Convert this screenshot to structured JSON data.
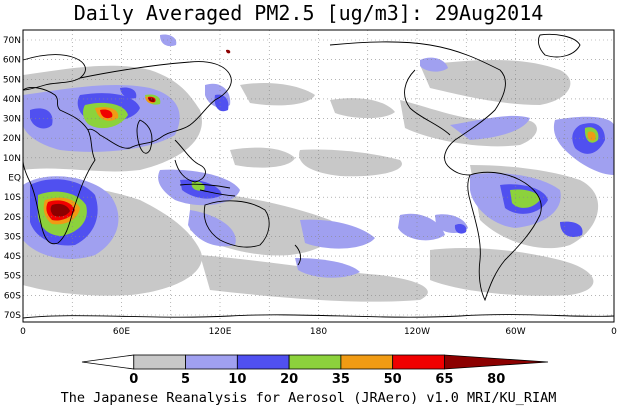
{
  "title": "Daily Averaged PM2.5 [ug/m3]: 29Aug2014",
  "footer": "The Japanese Reanalysis for Aerosol (JRAero) v1.0 MRI/KU_RIAM",
  "lat_labels": [
    "70N",
    "60N",
    "50N",
    "40N",
    "30N",
    "20N",
    "10N",
    "EQ",
    "10S",
    "20S",
    "30S",
    "40S",
    "50S",
    "60S",
    "70S"
  ],
  "lon_labels": [
    "0",
    "60E",
    "120E",
    "180",
    "120W",
    "60W",
    "0"
  ],
  "colorbar": {
    "levels": [
      "0",
      "5",
      "10",
      "20",
      "35",
      "50",
      "65",
      "80"
    ],
    "colors": [
      "#ffffff",
      "#c8c8c8",
      "#a0a0f0",
      "#5050f0",
      "#8cd23c",
      "#f09b14",
      "#f00000",
      "#8c0000"
    ]
  }
}
